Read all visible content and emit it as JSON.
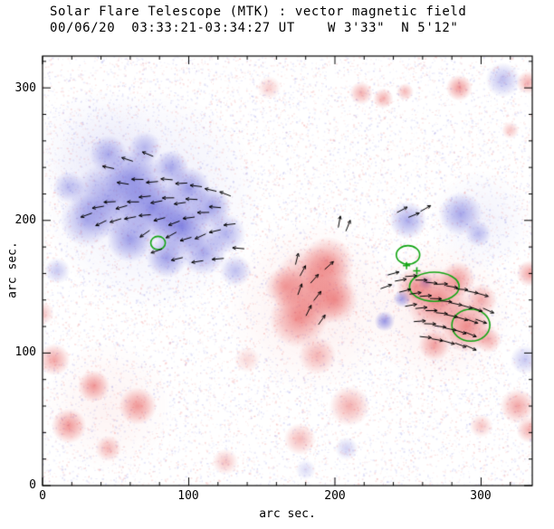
{
  "chart_data": {
    "type": "heatmap",
    "title": "Solar Flare Telescope (MTK) : vector magnetic field",
    "subtitle": "00/06/20  03:33:21-03:34:27 UT    W 3'33\"  N 5'12\"",
    "xlabel": "arc sec.",
    "ylabel": "arc sec.",
    "xlim": [
      0,
      335
    ],
    "ylim": [
      0,
      324
    ],
    "x_major_ticks": [
      0,
      100,
      200,
      300
    ],
    "y_major_ticks": [
      0,
      100,
      200,
      300
    ],
    "minor_tick_step": 20,
    "grid": false,
    "legend": "none",
    "colors": {
      "positive": "#e23535",
      "negative": "#4545d2",
      "contour": "#15a515",
      "vector": "#000000",
      "axis": "#000000"
    },
    "blobs": [
      {
        "x": 75,
        "y": 215,
        "r": 75,
        "p": "n",
        "a": 0.1
      },
      {
        "x": 40,
        "y": 250,
        "r": 45,
        "p": "n",
        "a": 0.08
      },
      {
        "x": 185,
        "y": 135,
        "r": 60,
        "p": "p",
        "a": 0.09
      },
      {
        "x": 272,
        "y": 130,
        "r": 50,
        "p": "p",
        "a": 0.09
      },
      {
        "x": 300,
        "y": 200,
        "r": 35,
        "p": "n",
        "a": 0.07
      },
      {
        "x": 45,
        "y": 60,
        "r": 45,
        "p": "p",
        "a": 0.06
      },
      {
        "x": 45,
        "y": 215,
        "r": 26,
        "p": "n",
        "a": 0.45
      },
      {
        "x": 62,
        "y": 232,
        "r": 20,
        "p": "n",
        "a": 0.5
      },
      {
        "x": 30,
        "y": 200,
        "r": 18,
        "p": "n",
        "a": 0.4
      },
      {
        "x": 75,
        "y": 210,
        "r": 22,
        "p": "n",
        "a": 0.6
      },
      {
        "x": 95,
        "y": 196,
        "r": 20,
        "p": "n",
        "a": 0.65
      },
      {
        "x": 60,
        "y": 186,
        "r": 16,
        "p": "n",
        "a": 0.5
      },
      {
        "x": 85,
        "y": 172,
        "r": 14,
        "p": "n",
        "a": 0.5
      },
      {
        "x": 110,
        "y": 176,
        "r": 16,
        "p": "n",
        "a": 0.45
      },
      {
        "x": 125,
        "y": 190,
        "r": 14,
        "p": "n",
        "a": 0.4
      },
      {
        "x": 45,
        "y": 250,
        "r": 13,
        "p": "n",
        "a": 0.4
      },
      {
        "x": 70,
        "y": 255,
        "r": 11,
        "p": "n",
        "a": 0.35
      },
      {
        "x": 18,
        "y": 225,
        "r": 11,
        "p": "n",
        "a": 0.35
      },
      {
        "x": 100,
        "y": 224,
        "r": 15,
        "p": "n",
        "a": 0.5
      },
      {
        "x": 115,
        "y": 210,
        "r": 14,
        "p": "n",
        "a": 0.5
      },
      {
        "x": 88,
        "y": 240,
        "r": 12,
        "p": "n",
        "a": 0.45
      },
      {
        "x": 132,
        "y": 162,
        "r": 11,
        "p": "n",
        "a": 0.35
      },
      {
        "x": 10,
        "y": 162,
        "r": 9,
        "p": "n",
        "a": 0.3
      },
      {
        "x": 250,
        "y": 200,
        "r": 13,
        "p": "n",
        "a": 0.45
      },
      {
        "x": 286,
        "y": 205,
        "r": 15,
        "p": "n",
        "a": 0.45
      },
      {
        "x": 298,
        "y": 190,
        "r": 9,
        "p": "n",
        "a": 0.35
      },
      {
        "x": 234,
        "y": 124,
        "r": 7,
        "p": "n",
        "a": 0.55
      },
      {
        "x": 246,
        "y": 141,
        "r": 6,
        "p": "n",
        "a": 0.5
      },
      {
        "x": 262,
        "y": 153,
        "r": 5,
        "p": "n",
        "a": 0.45
      },
      {
        "x": 315,
        "y": 306,
        "r": 12,
        "p": "n",
        "a": 0.35
      },
      {
        "x": 330,
        "y": 95,
        "r": 10,
        "p": "n",
        "a": 0.3
      },
      {
        "x": 208,
        "y": 28,
        "r": 8,
        "p": "n",
        "a": 0.25
      },
      {
        "x": 180,
        "y": 12,
        "r": 7,
        "p": "n",
        "a": 0.2
      },
      {
        "x": 185,
        "y": 150,
        "r": 28,
        "p": "p",
        "a": 0.5
      },
      {
        "x": 195,
        "y": 168,
        "r": 18,
        "p": "p",
        "a": 0.45
      },
      {
        "x": 175,
        "y": 126,
        "r": 20,
        "p": "p",
        "a": 0.5
      },
      {
        "x": 200,
        "y": 140,
        "r": 16,
        "p": "p",
        "a": 0.45
      },
      {
        "x": 166,
        "y": 150,
        "r": 14,
        "p": "p",
        "a": 0.4
      },
      {
        "x": 188,
        "y": 98,
        "r": 13,
        "p": "p",
        "a": 0.35
      },
      {
        "x": 210,
        "y": 60,
        "r": 14,
        "p": "p",
        "a": 0.4
      },
      {
        "x": 176,
        "y": 35,
        "r": 11,
        "p": "p",
        "a": 0.35
      },
      {
        "x": 270,
        "y": 140,
        "r": 22,
        "p": "p",
        "a": 0.55
      },
      {
        "x": 290,
        "y": 120,
        "r": 18,
        "p": "p",
        "a": 0.55
      },
      {
        "x": 255,
        "y": 150,
        "r": 13,
        "p": "p",
        "a": 0.45
      },
      {
        "x": 300,
        "y": 140,
        "r": 11,
        "p": "p",
        "a": 0.4
      },
      {
        "x": 284,
        "y": 156,
        "r": 12,
        "p": "p",
        "a": 0.45
      },
      {
        "x": 268,
        "y": 106,
        "r": 11,
        "p": "p",
        "a": 0.45
      },
      {
        "x": 305,
        "y": 110,
        "r": 9,
        "p": "p",
        "a": 0.4
      },
      {
        "x": 218,
        "y": 296,
        "r": 8,
        "p": "p",
        "a": 0.4
      },
      {
        "x": 233,
        "y": 292,
        "r": 7,
        "p": "p",
        "a": 0.4
      },
      {
        "x": 248,
        "y": 297,
        "r": 6,
        "p": "p",
        "a": 0.35
      },
      {
        "x": 285,
        "y": 300,
        "r": 9,
        "p": "p",
        "a": 0.5
      },
      {
        "x": 332,
        "y": 304,
        "r": 8,
        "p": "p",
        "a": 0.4
      },
      {
        "x": 320,
        "y": 268,
        "r": 6,
        "p": "p",
        "a": 0.3
      },
      {
        "x": 155,
        "y": 300,
        "r": 8,
        "p": "p",
        "a": 0.25
      },
      {
        "x": 333,
        "y": 160,
        "r": 9,
        "p": "p",
        "a": 0.45
      },
      {
        "x": 325,
        "y": 60,
        "r": 12,
        "p": "p",
        "a": 0.45
      },
      {
        "x": 333,
        "y": 42,
        "r": 9,
        "p": "p",
        "a": 0.4
      },
      {
        "x": 300,
        "y": 45,
        "r": 8,
        "p": "p",
        "a": 0.3
      },
      {
        "x": 8,
        "y": 95,
        "r": 11,
        "p": "p",
        "a": 0.45
      },
      {
        "x": 35,
        "y": 75,
        "r": 11,
        "p": "p",
        "a": 0.5
      },
      {
        "x": 65,
        "y": 60,
        "r": 13,
        "p": "p",
        "a": 0.5
      },
      {
        "x": 18,
        "y": 45,
        "r": 12,
        "p": "p",
        "a": 0.5
      },
      {
        "x": 45,
        "y": 28,
        "r": 9,
        "p": "p",
        "a": 0.35
      },
      {
        "x": 0,
        "y": 130,
        "r": 8,
        "p": "p",
        "a": 0.3
      },
      {
        "x": 125,
        "y": 18,
        "r": 9,
        "p": "p",
        "a": 0.3
      },
      {
        "x": 140,
        "y": 95,
        "r": 9,
        "p": "p",
        "a": 0.2
      }
    ],
    "contours": [
      {
        "x": 79,
        "y": 183,
        "rx": 5,
        "ry": 5
      },
      {
        "x": 250,
        "y": 174,
        "rx": 8,
        "ry": 7
      },
      {
        "x": 268,
        "y": 150,
        "rx": 17,
        "ry": 11
      },
      {
        "x": 293,
        "y": 121,
        "rx": 13,
        "ry": 12
      }
    ],
    "crosses": [
      [
        249,
        166
      ],
      [
        256,
        162
      ]
    ],
    "vectors": [
      [
        30,
        204,
        200
      ],
      [
        38,
        210,
        190
      ],
      [
        46,
        214,
        183
      ],
      [
        54,
        210,
        196
      ],
      [
        62,
        214,
        180
      ],
      [
        70,
        218,
        186
      ],
      [
        78,
        214,
        191
      ],
      [
        86,
        217,
        181
      ],
      [
        94,
        213,
        188
      ],
      [
        102,
        216,
        177
      ],
      [
        40,
        198,
        206
      ],
      [
        50,
        200,
        197
      ],
      [
        60,
        202,
        191
      ],
      [
        70,
        204,
        185
      ],
      [
        80,
        201,
        195
      ],
      [
        90,
        198,
        201
      ],
      [
        100,
        202,
        187
      ],
      [
        110,
        206,
        181
      ],
      [
        118,
        210,
        175
      ],
      [
        55,
        228,
        171
      ],
      [
        65,
        231,
        179
      ],
      [
        75,
        229,
        185
      ],
      [
        85,
        231,
        175
      ],
      [
        95,
        228,
        183
      ],
      [
        105,
        226,
        173
      ],
      [
        115,
        223,
        167
      ],
      [
        125,
        220,
        159
      ],
      [
        88,
        189,
        209
      ],
      [
        98,
        186,
        197
      ],
      [
        108,
        188,
        205
      ],
      [
        118,
        192,
        193
      ],
      [
        128,
        197,
        187
      ],
      [
        70,
        190,
        215
      ],
      [
        78,
        177,
        199
      ],
      [
        92,
        171,
        193
      ],
      [
        106,
        169,
        189
      ],
      [
        120,
        171,
        185
      ],
      [
        134,
        179,
        175
      ],
      [
        45,
        240,
        168
      ],
      [
        58,
        246,
        162
      ],
      [
        72,
        250,
        158
      ],
      [
        178,
        162,
        62
      ],
      [
        186,
        156,
        48
      ],
      [
        176,
        148,
        70
      ],
      [
        188,
        143,
        52
      ],
      [
        182,
        132,
        64
      ],
      [
        191,
        125,
        55
      ],
      [
        174,
        171,
        76
      ],
      [
        196,
        166,
        42
      ],
      [
        203,
        199,
        80
      ],
      [
        209,
        196,
        68
      ],
      [
        240,
        160,
        15
      ],
      [
        246,
        208,
        28
      ],
      [
        254,
        204,
        22
      ],
      [
        262,
        209,
        30
      ],
      [
        235,
        150,
        20
      ],
      [
        245,
        155,
        10
      ],
      [
        252,
        158,
        5
      ],
      [
        259,
        155,
        0
      ],
      [
        266,
        153,
        -6
      ],
      [
        273,
        152,
        2
      ],
      [
        280,
        150,
        -10
      ],
      [
        287,
        148,
        -4
      ],
      [
        294,
        146,
        -12
      ],
      [
        301,
        144,
        -16
      ],
      [
        248,
        147,
        14
      ],
      [
        255,
        145,
        8
      ],
      [
        262,
        143,
        4
      ],
      [
        269,
        141,
        -2
      ],
      [
        276,
        139,
        -6
      ],
      [
        283,
        137,
        -12
      ],
      [
        290,
        135,
        -16
      ],
      [
        297,
        133,
        -20
      ],
      [
        252,
        136,
        10
      ],
      [
        259,
        134,
        6
      ],
      [
        266,
        132,
        0
      ],
      [
        273,
        130,
        -6
      ],
      [
        280,
        128,
        -12
      ],
      [
        287,
        126,
        -16
      ],
      [
        294,
        124,
        -20
      ],
      [
        258,
        124,
        4
      ],
      [
        265,
        122,
        -2
      ],
      [
        272,
        120,
        -8
      ],
      [
        279,
        118,
        -12
      ],
      [
        286,
        116,
        -18
      ],
      [
        293,
        114,
        -22
      ],
      [
        300,
        124,
        -20
      ],
      [
        305,
        132,
        -24
      ],
      [
        262,
        112,
        -6
      ],
      [
        270,
        110,
        -10
      ],
      [
        278,
        108,
        -16
      ],
      [
        286,
        106,
        -20
      ],
      [
        293,
        104,
        -24
      ]
    ]
  }
}
